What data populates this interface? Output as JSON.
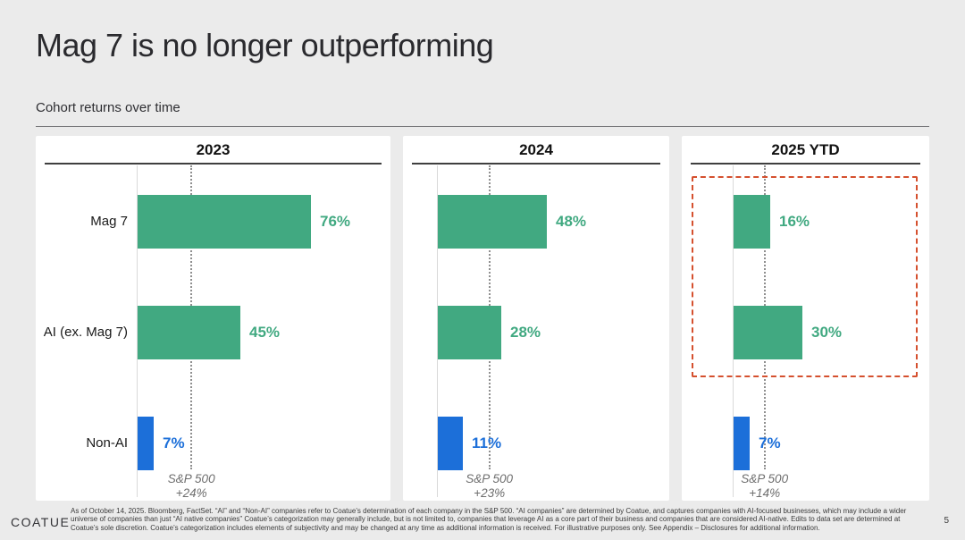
{
  "slide": {
    "title": "Mag 7 is no longer outperforming",
    "subtitle": "Cohort returns over time",
    "logo": "COATUE",
    "page_number": "5",
    "footnote": "As of October 14, 2025. Bloomberg, FactSet. “AI” and “Non-AI” companies refer to Coatue’s determination of each company in the S&P 500. “AI companies” are determined by Coatue, and captures companies with AI-focused businesses, which may include a wider universe of companies than just “AI native companies”  Coatue’s categorization may generally include, but is not limited to, companies that leverage AI as a core part of their business and companies that are considered AI-native. Edits to data set are determined at Coatue’s sole discretion. Coatue’s categorization includes elements of subjectivity and may be changed at any time as additional information is received. For illustrative purposes only. See Appendix – Disclosures for additional information."
  },
  "colors": {
    "background": "#ebebeb",
    "panel": "#ffffff",
    "green": "#41a981",
    "blue": "#1c6fd9",
    "highlight_box": "#d5502e",
    "benchmark_line": "#8f8f8f"
  },
  "chart_data": [
    {
      "type": "bar",
      "orientation": "horizontal",
      "title": "2023",
      "categories": [
        "Mag 7",
        "AI (ex. Mag 7)",
        "Non-AI"
      ],
      "values": [
        76,
        45,
        7
      ],
      "value_labels": [
        "76%",
        "45%",
        "7%"
      ],
      "bar_colors": [
        "#41a981",
        "#41a981",
        "#1c6fd9"
      ],
      "benchmark": {
        "name": "S&P 500",
        "value": 24,
        "label": "+24%"
      },
      "xlim": [
        0,
        110
      ],
      "grid": false,
      "show_category_labels": true,
      "highlight_box": false
    },
    {
      "type": "bar",
      "orientation": "horizontal",
      "title": "2024",
      "categories": [
        "Mag 7",
        "AI (ex. Mag 7)",
        "Non-AI"
      ],
      "values": [
        48,
        28,
        11
      ],
      "value_labels": [
        "48%",
        "28%",
        "11%"
      ],
      "bar_colors": [
        "#41a981",
        "#41a981",
        "#1c6fd9"
      ],
      "benchmark": {
        "name": "S&P 500",
        "value": 23,
        "label": "+23%"
      },
      "xlim": [
        0,
        110
      ],
      "grid": false,
      "show_category_labels": false,
      "highlight_box": false
    },
    {
      "type": "bar",
      "orientation": "horizontal",
      "title": "2025 YTD",
      "categories": [
        "Mag 7",
        "AI (ex. Mag 7)",
        "Non-AI"
      ],
      "values": [
        16,
        30,
        7
      ],
      "value_labels": [
        "16%",
        "30%",
        "7%"
      ],
      "bar_colors": [
        "#41a981",
        "#41a981",
        "#1c6fd9"
      ],
      "benchmark": {
        "name": "S&P 500",
        "value": 14,
        "label": "+14%"
      },
      "xlim": [
        0,
        110
      ],
      "grid": false,
      "show_category_labels": false,
      "highlight_box": true,
      "highlight_rows": [
        0,
        1
      ]
    }
  ]
}
